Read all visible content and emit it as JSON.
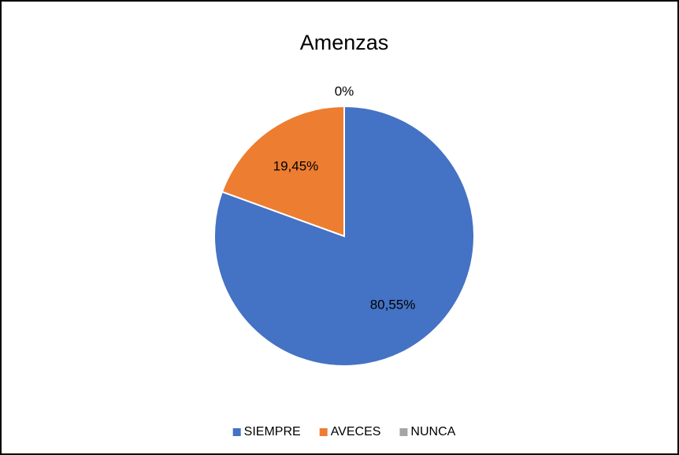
{
  "chart_data": {
    "type": "pie",
    "title": "Amenzas",
    "categories": [
      "SIEMPRE",
      "AVECES",
      "NUNCA"
    ],
    "values": [
      80.55,
      19.45,
      0
    ],
    "value_labels": [
      "80,55%",
      "19,45%",
      "0%"
    ],
    "colors": [
      "#4472c4",
      "#ed7d31",
      "#a5a5a5"
    ],
    "legend": "bottom"
  }
}
